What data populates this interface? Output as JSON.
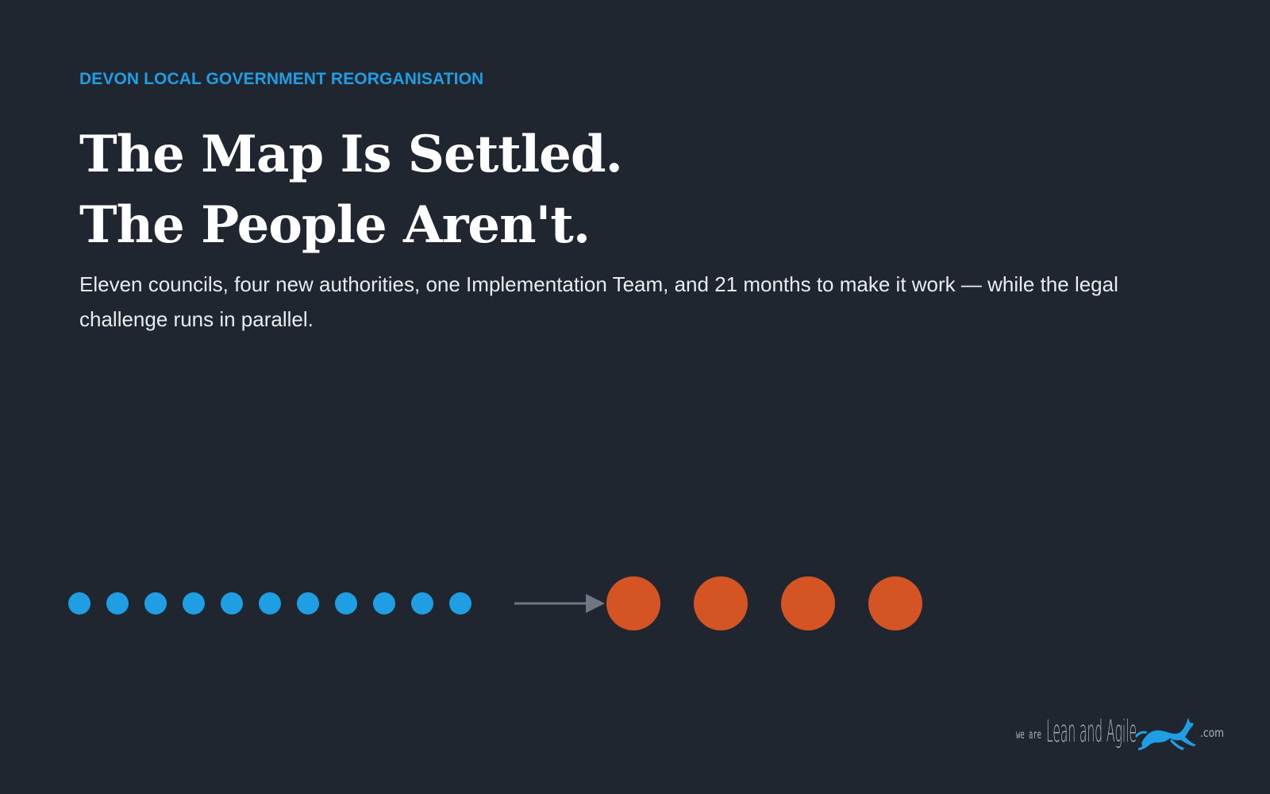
{
  "eyebrow": "DEVON LOCAL GOVERNMENT REORGANISATION",
  "title": {
    "line1": "The Map Is Settled.",
    "line2": "The People Aren't."
  },
  "subtitle": "Eleven councils, four new authorities, one Implementation Team, and 21 months to make it work — while the legal challenge runs in parallel.",
  "diagram": {
    "from_count": 11,
    "to_count": 4,
    "from_color": "#1f9ee4",
    "to_color": "#d45423",
    "arrow_color": "#6f7782"
  },
  "brand": {
    "prefix": "we are",
    "name": "Lean and Agile",
    "suffix": ".com",
    "icon": "greyhound-icon",
    "color": "#1f9ee4",
    "text_color": "#aab1ba"
  }
}
